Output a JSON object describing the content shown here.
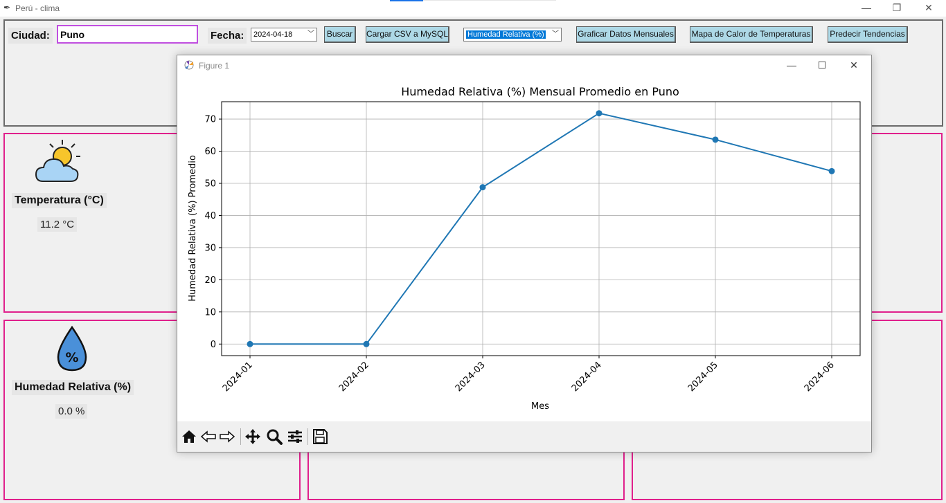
{
  "window": {
    "title": "Perú - clima",
    "minimize_glyph": "—",
    "restore_glyph": "❐",
    "close_glyph": "✕"
  },
  "controls": {
    "ciudad_label": "Ciudad:",
    "ciudad_value": "Puno",
    "fecha_label": "Fecha:",
    "fecha_value": "2024-04-18",
    "buscar": "Buscar",
    "cargar_csv": "Cargar CSV a MySQL",
    "variable_selected": "Humedad Relativa (%)",
    "graficar": "Graficar Datos Mensuales",
    "mapa_calor": "Mapa de Calor de Temperaturas",
    "predecir": "Predecir Tendencias"
  },
  "cards": {
    "temperatura": {
      "title": "Temperatura (°C)",
      "value": "11.2 °C",
      "icon": "partly-cloudy-icon"
    },
    "humedad": {
      "title": "Humedad Relativa (%)",
      "value": "0.0 %",
      "icon": "humidity-drop-icon"
    }
  },
  "figure": {
    "title": "Figure 1",
    "toolbar": [
      "home-icon",
      "back-icon",
      "forward-icon",
      "pan-icon",
      "zoom-icon",
      "configure-subplots-icon",
      "save-icon"
    ]
  },
  "colors": {
    "card_border": "#e0208c",
    "button_bg": "#add8e6",
    "series_line": "#1f77b4",
    "city_border": "#c04ee0"
  },
  "chart_data": {
    "type": "line",
    "title": "Humedad Relativa (%) Mensual Promedio en Puno",
    "xlabel": "Mes",
    "ylabel": "Humedad Relativa (%) Promedio",
    "categories": [
      "2024-01",
      "2024-02",
      "2024-03",
      "2024-04",
      "2024-05",
      "2024-06"
    ],
    "values": [
      0,
      0,
      48.8,
      71.8,
      63.6,
      53.8
    ],
    "ylim": [
      -3.6,
      75.4
    ],
    "yticks": [
      "0",
      "10",
      "20",
      "30",
      "40",
      "50",
      "60",
      "70"
    ],
    "grid": true,
    "marker": "circle"
  }
}
